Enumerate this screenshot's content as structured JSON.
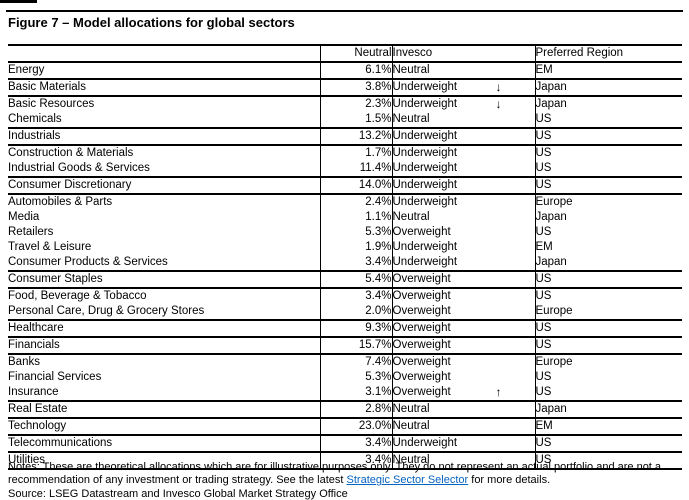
{
  "figure": {
    "title": "Figure 7 – Model allocations for global sectors"
  },
  "table": {
    "headers": {
      "sector": "",
      "neutral": "Neutral",
      "invesco": "Invesco",
      "region": "Preferred Region"
    },
    "arrows": {
      "down": "↓",
      "up": "↑"
    },
    "rows": [
      {
        "sector": "Energy",
        "neutral": "6.1%",
        "invesco": "Neutral",
        "arrow": "",
        "region": "EM",
        "bold": true,
        "rule_above": true
      },
      {
        "sector": "Basic Materials",
        "neutral": "3.8%",
        "invesco": "Underweight",
        "arrow": "down",
        "region": "Japan",
        "bold": true,
        "rule_above": true
      },
      {
        "sector": "Basic Resources",
        "neutral": "2.3%",
        "invesco": "Underweight",
        "arrow": "down",
        "region": "Japan",
        "bold": false,
        "rule_above": true
      },
      {
        "sector": "Chemicals",
        "neutral": "1.5%",
        "invesco": "Neutral",
        "arrow": "",
        "region": "US",
        "bold": false,
        "rule_above": false
      },
      {
        "sector": "Industrials",
        "neutral": "13.2%",
        "invesco": "Underweight",
        "arrow": "",
        "region": "US",
        "bold": true,
        "rule_above": true
      },
      {
        "sector": "Construction & Materials",
        "neutral": "1.7%",
        "invesco": "Underweight",
        "arrow": "",
        "region": "US",
        "bold": false,
        "rule_above": true
      },
      {
        "sector": "Industrial Goods & Services",
        "neutral": "11.4%",
        "invesco": "Underweight",
        "arrow": "",
        "region": "US",
        "bold": false,
        "rule_above": false
      },
      {
        "sector": "Consumer Discretionary",
        "neutral": "14.0%",
        "invesco": "Underweight",
        "arrow": "",
        "region": "US",
        "bold": true,
        "rule_above": true
      },
      {
        "sector": "Automobiles & Parts",
        "neutral": "2.4%",
        "invesco": "Underweight",
        "arrow": "",
        "region": "Europe",
        "bold": false,
        "rule_above": true
      },
      {
        "sector": "Media",
        "neutral": "1.1%",
        "invesco": "Neutral",
        "arrow": "",
        "region": "Japan",
        "bold": false,
        "rule_above": false
      },
      {
        "sector": "Retailers",
        "neutral": "5.3%",
        "invesco": "Overweight",
        "arrow": "",
        "region": "US",
        "bold": false,
        "rule_above": false
      },
      {
        "sector": "Travel & Leisure",
        "neutral": "1.9%",
        "invesco": "Underweight",
        "arrow": "",
        "region": "EM",
        "bold": false,
        "rule_above": false
      },
      {
        "sector": "Consumer Products & Services",
        "neutral": "3.4%",
        "invesco": "Underweight",
        "arrow": "",
        "region": "Japan",
        "bold": false,
        "rule_above": false
      },
      {
        "sector": "Consumer Staples",
        "neutral": "5.4%",
        "invesco": "Overweight",
        "arrow": "",
        "region": "US",
        "bold": true,
        "rule_above": true
      },
      {
        "sector": "Food, Beverage & Tobacco",
        "neutral": "3.4%",
        "invesco": "Overweight",
        "arrow": "",
        "region": "US",
        "bold": false,
        "rule_above": true
      },
      {
        "sector": "Personal Care, Drug & Grocery Stores",
        "neutral": "2.0%",
        "invesco": "Overweight",
        "arrow": "",
        "region": "Europe",
        "bold": false,
        "rule_above": false
      },
      {
        "sector": "Healthcare",
        "neutral": "9.3%",
        "invesco": "Overweight",
        "arrow": "",
        "region": "US",
        "bold": true,
        "rule_above": true
      },
      {
        "sector": "Financials",
        "neutral": "15.7%",
        "invesco": "Overweight",
        "arrow": "",
        "region": "US",
        "bold": true,
        "rule_above": true
      },
      {
        "sector": "Banks",
        "neutral": "7.4%",
        "invesco": "Overweight",
        "arrow": "",
        "region": "Europe",
        "bold": false,
        "rule_above": true
      },
      {
        "sector": "Financial Services",
        "neutral": "5.3%",
        "invesco": "Overweight",
        "arrow": "",
        "region": "US",
        "bold": false,
        "rule_above": false
      },
      {
        "sector": "Insurance",
        "neutral": "3.1%",
        "invesco": "Overweight",
        "arrow": "up",
        "region": "US",
        "bold": false,
        "rule_above": false
      },
      {
        "sector": "Real Estate",
        "neutral": "2.8%",
        "invesco": "Neutral",
        "arrow": "",
        "region": "Japan",
        "bold": true,
        "rule_above": true
      },
      {
        "sector": "Technology",
        "neutral": "23.0%",
        "invesco": "Neutral",
        "arrow": "",
        "region": "EM",
        "bold": true,
        "rule_above": true
      },
      {
        "sector": "Telecommunications",
        "neutral": "3.4%",
        "invesco": "Underweight",
        "arrow": "",
        "region": "US",
        "bold": true,
        "rule_above": true
      },
      {
        "sector": "Utilities",
        "neutral": "3.4%",
        "invesco": "Neutral",
        "arrow": "",
        "region": "US",
        "bold": true,
        "rule_above": true
      }
    ]
  },
  "footer": {
    "notes_prefix": "Notes: These are theoretical allocations which are for illustrative purposes only. They do not represent an actual portfolio and are not a recommendation of any investment or trading strategy. See the latest ",
    "link_text": "Strategic Sector Selector",
    "notes_suffix": " for more details.",
    "source": "Source: LSEG Datastream and Invesco Global Market Strategy Office"
  },
  "colors": {
    "link_blue": "#0563C1",
    "text": "#000000",
    "rule": "#000000"
  }
}
